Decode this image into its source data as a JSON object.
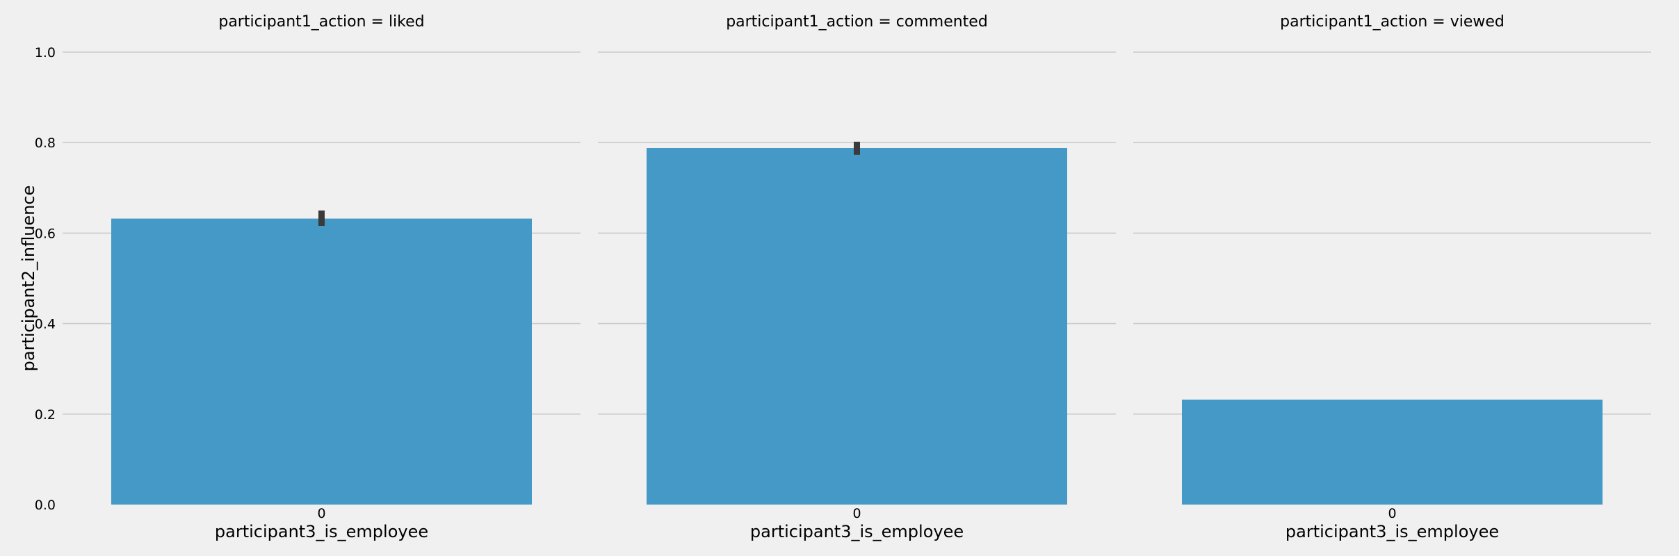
{
  "chart_data": {
    "type": "bar",
    "facet_variable": "participant1_action",
    "ylabel": "participant2_influence",
    "xlabel": "participant3_is_employee",
    "ylim": [
      0,
      1.0
    ],
    "yticks": [
      "0.0",
      "0.2",
      "0.4",
      "0.6",
      "0.8",
      "1.0"
    ],
    "grid": true,
    "bar_color": "#4599c7",
    "errorbar_color": "#3a3a3a",
    "background": "#f0f0f0",
    "panels": [
      {
        "title": "participant1_action = liked",
        "categories": [
          "0"
        ],
        "values": [
          0.632
        ],
        "error": [
          0.616,
          0.65
        ]
      },
      {
        "title": "participant1_action = commented",
        "categories": [
          "0"
        ],
        "values": [
          0.788
        ],
        "error": [
          0.773,
          0.802
        ]
      },
      {
        "title": "participant1_action = viewed",
        "categories": [
          "0"
        ],
        "values": [
          0.232
        ],
        "error": null
      }
    ]
  }
}
